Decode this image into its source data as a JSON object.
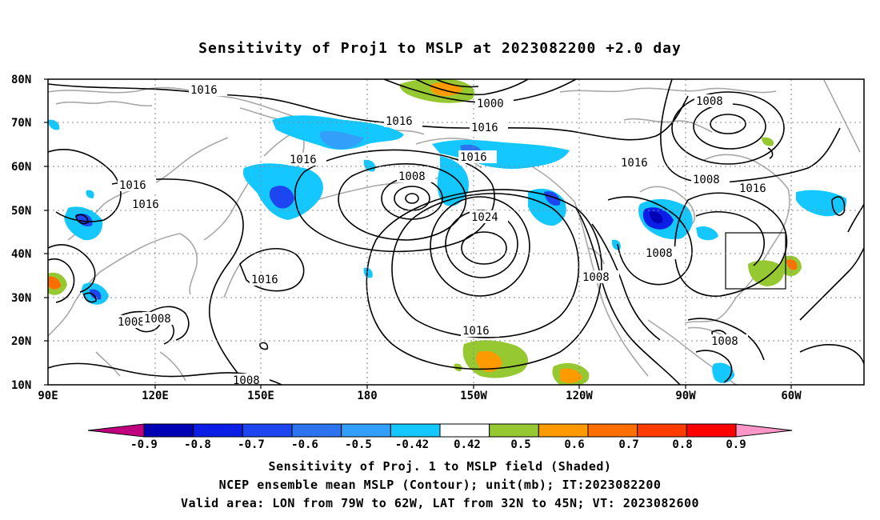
{
  "title": "Sensitivity of Proj1 to MSLP at 2023082200 +2.0 day",
  "lat_labels": [
    "80N",
    "70N",
    "60N",
    "50N",
    "40N",
    "30N",
    "20N",
    "10N"
  ],
  "lon_labels": [
    "90E",
    "120E",
    "150E",
    "180",
    "150W",
    "120W",
    "90W",
    "60W"
  ],
  "contour_labels": [
    "1016",
    "1000",
    "1008",
    "1016",
    "1016",
    "1016",
    "1016",
    "1008",
    "1016",
    "1016",
    "1024",
    "1008",
    "1016",
    "1016",
    "1008",
    "1016",
    "1008",
    "1008",
    "1008",
    "1008",
    "1008",
    "1016"
  ],
  "colorbar": {
    "labels": [
      "-0.9",
      "-0.8",
      "-0.7",
      "-0.6",
      "-0.5",
      "-0.42",
      "0.42",
      "0.5",
      "0.6",
      "0.7",
      "0.8",
      "0.9"
    ],
    "colors": [
      "#c1007f",
      "#0000b4",
      "#0a1ee6",
      "#1e46f0",
      "#2d73f0",
      "#32a0fa",
      "#14c8ff",
      "#ffffff",
      "#96c832",
      "#ff9b00",
      "#ff6e00",
      "#ff3c00",
      "#ff0000",
      "#ff96c8"
    ]
  },
  "captions": [
    "Sensitivity of Proj. 1 to MSLP field (Shaded)",
    "NCEP ensemble mean MSLP (Contour); unit(mb); IT:2023082200",
    "Valid area: LON from 79W to 62W, LAT from 32N to 45N; VT: 2023082600"
  ]
}
